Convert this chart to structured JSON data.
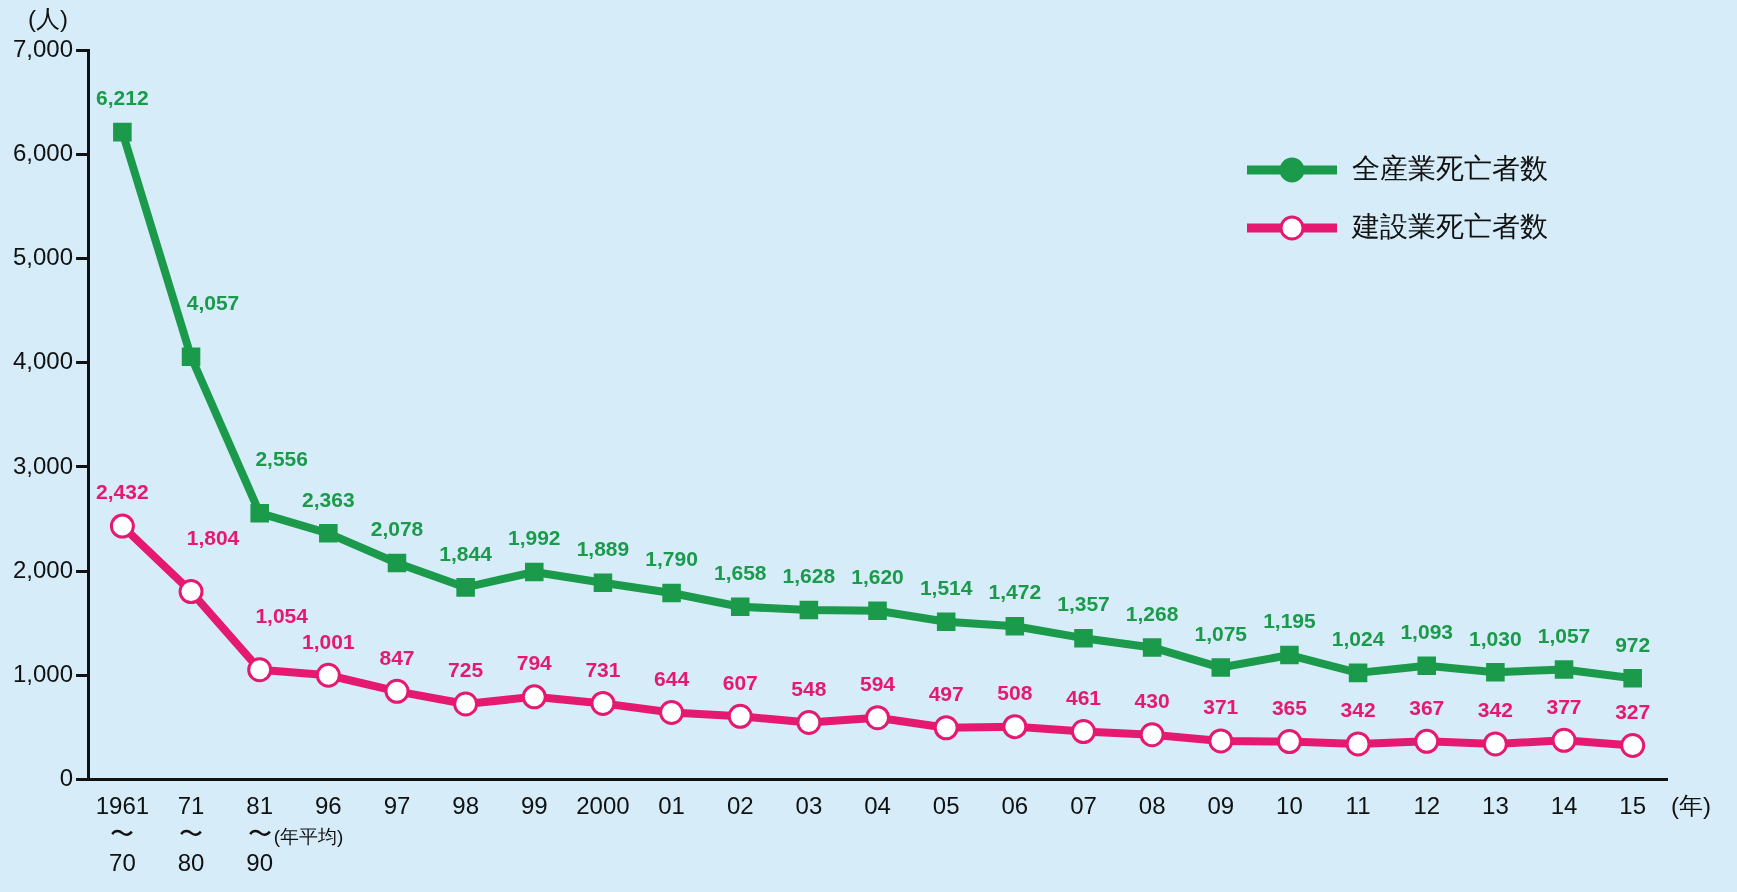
{
  "chart_data": {
    "type": "line",
    "ylabel": "(人)",
    "xlabel": "(年)",
    "categories": [
      "1961\n〜\n70",
      "71\n〜\n80",
      "81\n〜\n90",
      "96",
      "97",
      "98",
      "99",
      "2000",
      "01",
      "02",
      "03",
      "04",
      "05",
      "06",
      "07",
      "08",
      "09",
      "10",
      "11",
      "12",
      "13",
      "14",
      "15"
    ],
    "series": [
      {
        "name": "全産業死亡者数",
        "color": "#1a9a4a",
        "marker": "square",
        "values": [
          6212,
          4057,
          2556,
          2363,
          2078,
          1844,
          1992,
          1889,
          1790,
          1658,
          1628,
          1620,
          1514,
          1472,
          1357,
          1268,
          1075,
          1195,
          1024,
          1093,
          1030,
          1057,
          972
        ],
        "value_labels": [
          "6,212",
          "4,057",
          "2,556",
          "2,363",
          "2,078",
          "1,844",
          "1,992",
          "1,889",
          "1,790",
          "1,658",
          "1,628",
          "1,620",
          "1,514",
          "1,472",
          "1,357",
          "1,268",
          "1,075",
          "1,195",
          "1,024",
          "1,093",
          "1,030",
          "1,057",
          "972"
        ]
      },
      {
        "name": "建設業死亡者数",
        "color": "#e5196f",
        "marker": "circle",
        "values": [
          2432,
          1804,
          1054,
          1001,
          847,
          725,
          794,
          731,
          644,
          607,
          548,
          594,
          497,
          508,
          461,
          430,
          371,
          365,
          342,
          367,
          342,
          377,
          327
        ],
        "value_labels": [
          "2,432",
          "1,804",
          "1,054",
          "1,001",
          "847",
          "725",
          "794",
          "731",
          "644",
          "607",
          "548",
          "594",
          "497",
          "508",
          "461",
          "430",
          "371",
          "365",
          "342",
          "367",
          "342",
          "377",
          "327"
        ]
      }
    ],
    "ylim": [
      0,
      7000
    ],
    "yticks": [
      0,
      {
        "value": 1000,
        "label": "1,000"
      },
      {
        "value": 2000,
        "label": "2,000"
      },
      {
        "value": 3000,
        "label": "3,000"
      },
      {
        "value": 4000,
        "label": "4,000"
      },
      {
        "value": 5000,
        "label": "5,000"
      },
      {
        "value": 6000,
        "label": "6,000"
      },
      {
        "value": 7000,
        "label": "7,000"
      }
    ],
    "grid": false,
    "legend": "top right",
    "line_style": "solid",
    "annotations": [
      "(年平均)"
    ]
  }
}
